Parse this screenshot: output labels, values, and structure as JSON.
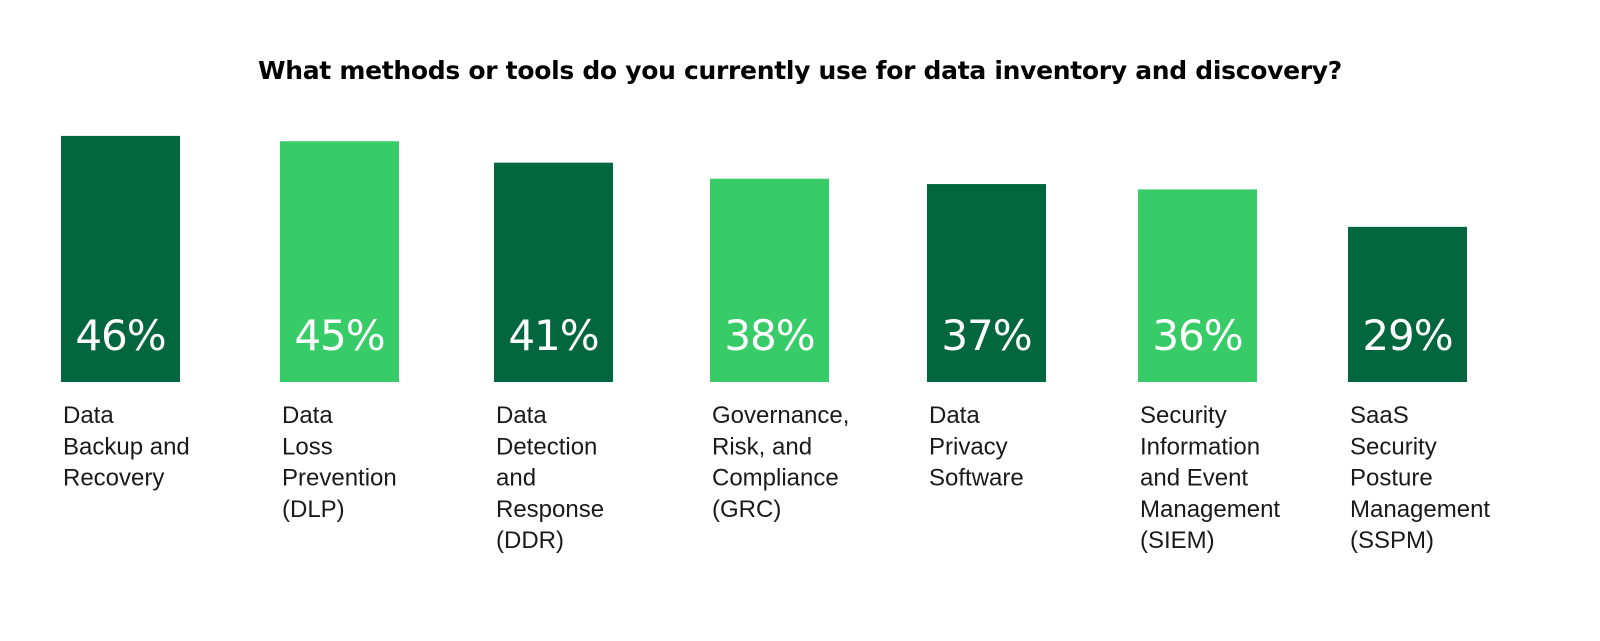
{
  "chart_data": {
    "type": "bar",
    "title": "What methods or tools do you currently use for data inventory and discovery?",
    "xlabel": "",
    "ylabel": "",
    "ylim": [
      0,
      50
    ],
    "grid": false,
    "legend": "none",
    "categories": [
      "Data Backup and Recovery",
      "Data Loss Prevention (DLP)",
      "Data Detection and Response (DDR)",
      "Governance, Risk, and Compliance (GRC)",
      "Data Privacy Software",
      "Security Information and Event Management (SIEM)",
      "SaaS Security Posture Management (SSPM)"
    ],
    "category_label_lines": [
      [
        "Data",
        "Backup and",
        "Recovery"
      ],
      [
        "Data",
        "Loss",
        "Prevention",
        "(DLP)"
      ],
      [
        "Data",
        "Detection",
        "and",
        "Response",
        "(DDR)"
      ],
      [
        "Governance,",
        "Risk, and",
        "Compliance",
        "(GRC)"
      ],
      [
        "Data",
        "Privacy",
        "Software"
      ],
      [
        "Security",
        "Information",
        "and Event",
        "Management",
        "(SIEM)"
      ],
      [
        "SaaS",
        "Security",
        "Posture",
        "Management",
        "(SSPM)"
      ]
    ],
    "values": [
      46,
      45,
      41,
      38,
      37,
      36,
      29
    ],
    "value_labels": [
      "46%",
      "45%",
      "41%",
      "38%",
      "37%",
      "36%",
      "29%"
    ],
    "colors": [
      "#02673F",
      "#37CC67",
      "#02673F",
      "#37CC67",
      "#02673F",
      "#37CC67",
      "#02673F"
    ]
  }
}
